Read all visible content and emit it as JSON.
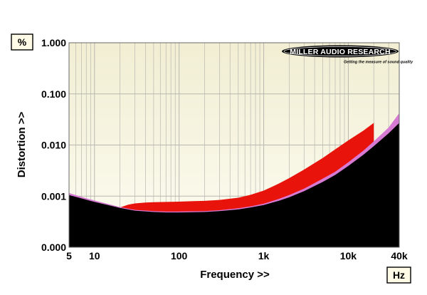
{
  "chart_data": {
    "type": "area",
    "xlabel": "Frequency >>",
    "ylabel": "Distortion >>",
    "x_unit": "Hz",
    "y_unit": "%",
    "x_scale": "log",
    "y_scale": "log",
    "xlim": [
      5,
      40000
    ],
    "ylim": [
      0.0001,
      1.0
    ],
    "x_tick_labels": [
      {
        "value": 5,
        "label": "5"
      },
      {
        "value": 10,
        "label": "10"
      },
      {
        "value": 100,
        "label": "100"
      },
      {
        "value": 1000,
        "label": "1k"
      },
      {
        "value": 10000,
        "label": "10k"
      },
      {
        "value": 40000,
        "label": "40k"
      }
    ],
    "y_tick_labels": [
      {
        "value": 1.0,
        "label": "1.000"
      },
      {
        "value": 0.1,
        "label": "0.100"
      },
      {
        "value": 0.01,
        "label": "0.010"
      },
      {
        "value": 0.001,
        "label": "0.001"
      },
      {
        "value": 0.0001,
        "label": "0.000"
      }
    ],
    "grid": true,
    "logo": {
      "text": "MILLER AUDIO RESEARCH",
      "tagline": "Getting the measure of sound quality"
    },
    "colors": {
      "background": "#fbf9e6",
      "background_top": "#f3f0d6",
      "black_trace": "#000000",
      "pink_trace": "#d77ad3",
      "red_trace": "#e8130b",
      "grid": "#b8b8b0"
    },
    "series": [
      {
        "color": "#000000",
        "x": [
          5,
          6,
          8,
          10,
          15,
          20,
          25,
          30,
          50,
          70,
          100,
          200,
          300,
          500,
          700,
          1000,
          1500,
          2000,
          3000,
          5000,
          7000,
          10000,
          15000,
          20000,
          30000,
          40000
        ],
        "y": [
          0.00105,
          0.00097,
          0.00085,
          0.00077,
          0.00066,
          0.00059,
          0.00055,
          0.00052,
          0.00049,
          0.00048,
          0.00048,
          0.00049,
          0.00051,
          0.00055,
          0.0006,
          0.00067,
          0.00081,
          0.00095,
          0.00125,
          0.0019,
          0.0026,
          0.0039,
          0.0064,
          0.0095,
          0.017,
          0.027
        ]
      },
      {
        "color": "#d77ad3",
        "x": [
          5,
          6,
          8,
          10,
          15,
          20,
          25,
          30,
          50,
          70,
          100,
          200,
          300,
          500,
          700,
          1000,
          1500,
          2000,
          3000,
          5000,
          7000,
          10000,
          15000,
          20000,
          30000,
          40000
        ],
        "y": [
          0.00115,
          0.00105,
          0.00091,
          0.00082,
          0.00069,
          0.00061,
          0.00057,
          0.00054,
          0.00051,
          0.0005,
          0.0005,
          0.00051,
          0.00053,
          0.00058,
          0.00063,
          0.00071,
          0.00088,
          0.00105,
          0.0014,
          0.0022,
          0.003,
          0.0046,
          0.0077,
          0.0118,
          0.022,
          0.042
        ]
      },
      {
        "color": "#e8130b",
        "x": [
          20,
          25,
          30,
          40,
          50,
          70,
          100,
          150,
          200,
          300,
          500,
          700,
          1000,
          1500,
          2000,
          3000,
          5000,
          7000,
          10000,
          15000,
          20000
        ],
        "y": [
          0.0006,
          0.00068,
          0.00072,
          0.00075,
          0.00076,
          0.00077,
          0.00078,
          0.0008,
          0.00081,
          0.00084,
          0.00093,
          0.00106,
          0.00128,
          0.00175,
          0.00225,
          0.0033,
          0.0056,
          0.0082,
          0.0123,
          0.019,
          0.027
        ]
      }
    ]
  }
}
